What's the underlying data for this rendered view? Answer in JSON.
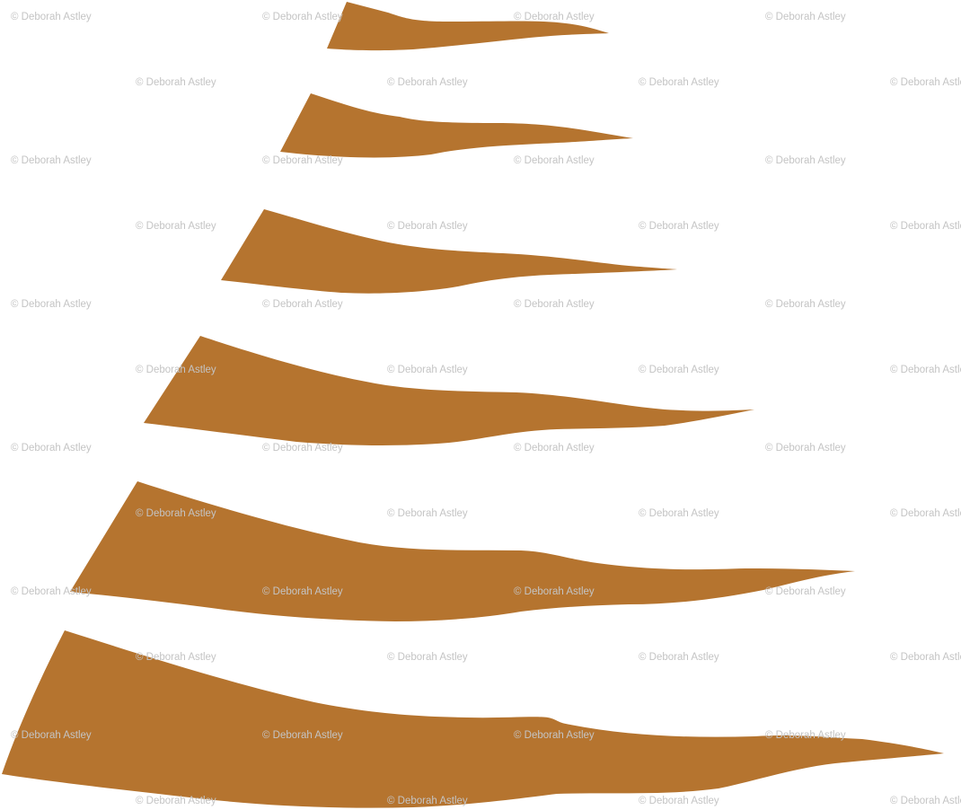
{
  "watermark": {
    "text": "© Deborah Astley",
    "color": "#c4c4c4"
  },
  "pattern": {
    "background": "#ffffff",
    "shape_color": "#b5742f",
    "shape_count": 6
  }
}
